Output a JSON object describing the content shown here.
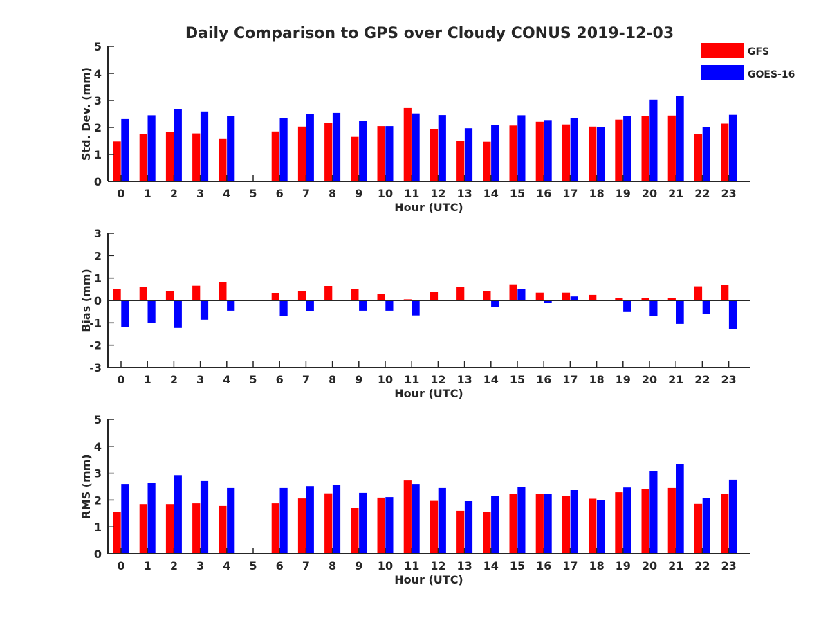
{
  "title": "Daily Comparison to GPS over Cloudy CONUS 2019-12-03",
  "colors": {
    "GFS": "#ff0000",
    "GOES-16": "#0000ff",
    "axis": "#262626"
  },
  "legend": {
    "placement": "top-right",
    "entries": [
      "GFS",
      "GOES-16"
    ]
  },
  "chart_data": [
    {
      "type": "bar",
      "ylabel": "Std. Dev. (mm)",
      "xlabel": "Hour (UTC)",
      "ylim": [
        0,
        5
      ],
      "yticks": [
        "0",
        "1",
        "2",
        "3",
        "4",
        "5"
      ],
      "categories": [
        "0",
        "1",
        "2",
        "3",
        "4",
        "5",
        "6",
        "7",
        "8",
        "9",
        "10",
        "11",
        "12",
        "13",
        "14",
        "15",
        "16",
        "17",
        "18",
        "19",
        "20",
        "21",
        "22",
        "23"
      ],
      "series": [
        {
          "name": "GFS",
          "values": [
            1.48,
            1.75,
            1.83,
            1.78,
            1.57,
            null,
            1.85,
            2.03,
            2.16,
            1.65,
            2.05,
            2.72,
            1.93,
            1.49,
            1.47,
            2.07,
            2.21,
            2.11,
            2.03,
            2.29,
            2.41,
            2.44,
            1.75,
            2.14
          ]
        },
        {
          "name": "GOES-16",
          "values": [
            2.31,
            2.45,
            2.67,
            2.57,
            2.42,
            null,
            2.34,
            2.49,
            2.54,
            2.23,
            2.05,
            2.52,
            2.46,
            1.97,
            2.1,
            2.45,
            2.25,
            2.36,
            2.0,
            2.42,
            3.03,
            3.18,
            2.01,
            2.47
          ]
        }
      ]
    },
    {
      "type": "bar",
      "ylabel": "Bias (mm)",
      "xlabel": "Hour (UTC)",
      "ylim": [
        -3,
        3
      ],
      "yticks": [
        "-3",
        "-2",
        "-1",
        "0",
        "1",
        "2",
        "3"
      ],
      "categories": [
        "0",
        "1",
        "2",
        "3",
        "4",
        "5",
        "6",
        "7",
        "8",
        "9",
        "10",
        "11",
        "12",
        "13",
        "14",
        "15",
        "16",
        "17",
        "18",
        "19",
        "20",
        "21",
        "22",
        "23"
      ],
      "series": [
        {
          "name": "GFS",
          "values": [
            0.5,
            0.6,
            0.43,
            0.66,
            0.82,
            null,
            0.34,
            0.43,
            0.65,
            0.5,
            0.31,
            0.05,
            0.37,
            0.6,
            0.43,
            0.72,
            0.35,
            0.35,
            0.25,
            0.1,
            0.12,
            0.12,
            0.63,
            0.69
          ]
        },
        {
          "name": "GOES-16",
          "values": [
            -1.2,
            -1.02,
            -1.23,
            -0.86,
            -0.46,
            null,
            -0.7,
            -0.48,
            0.0,
            -0.46,
            -0.46,
            -0.67,
            0.02,
            0.03,
            -0.3,
            0.5,
            -0.12,
            0.18,
            0.0,
            -0.52,
            -0.68,
            -1.05,
            -0.6,
            -1.27
          ]
        }
      ]
    },
    {
      "type": "bar",
      "ylabel": "RMS (mm)",
      "xlabel": "Hour (UTC)",
      "ylim": [
        0,
        5
      ],
      "yticks": [
        "0",
        "1",
        "2",
        "3",
        "4",
        "5"
      ],
      "categories": [
        "0",
        "1",
        "2",
        "3",
        "4",
        "5",
        "6",
        "7",
        "8",
        "9",
        "10",
        "11",
        "12",
        "13",
        "14",
        "15",
        "16",
        "17",
        "18",
        "19",
        "20",
        "21",
        "22",
        "23"
      ],
      "series": [
        {
          "name": "GFS",
          "values": [
            1.55,
            1.85,
            1.85,
            1.88,
            1.78,
            null,
            1.88,
            2.06,
            2.25,
            1.7,
            2.09,
            2.73,
            1.97,
            1.6,
            1.55,
            2.22,
            2.24,
            2.14,
            2.05,
            2.29,
            2.42,
            2.45,
            1.86,
            2.22
          ]
        },
        {
          "name": "GOES-16",
          "values": [
            2.6,
            2.63,
            2.93,
            2.71,
            2.45,
            null,
            2.45,
            2.52,
            2.56,
            2.27,
            2.11,
            2.6,
            2.45,
            1.96,
            2.14,
            2.5,
            2.24,
            2.37,
            1.99,
            2.47,
            3.09,
            3.33,
            2.08,
            2.76
          ]
        }
      ]
    }
  ]
}
